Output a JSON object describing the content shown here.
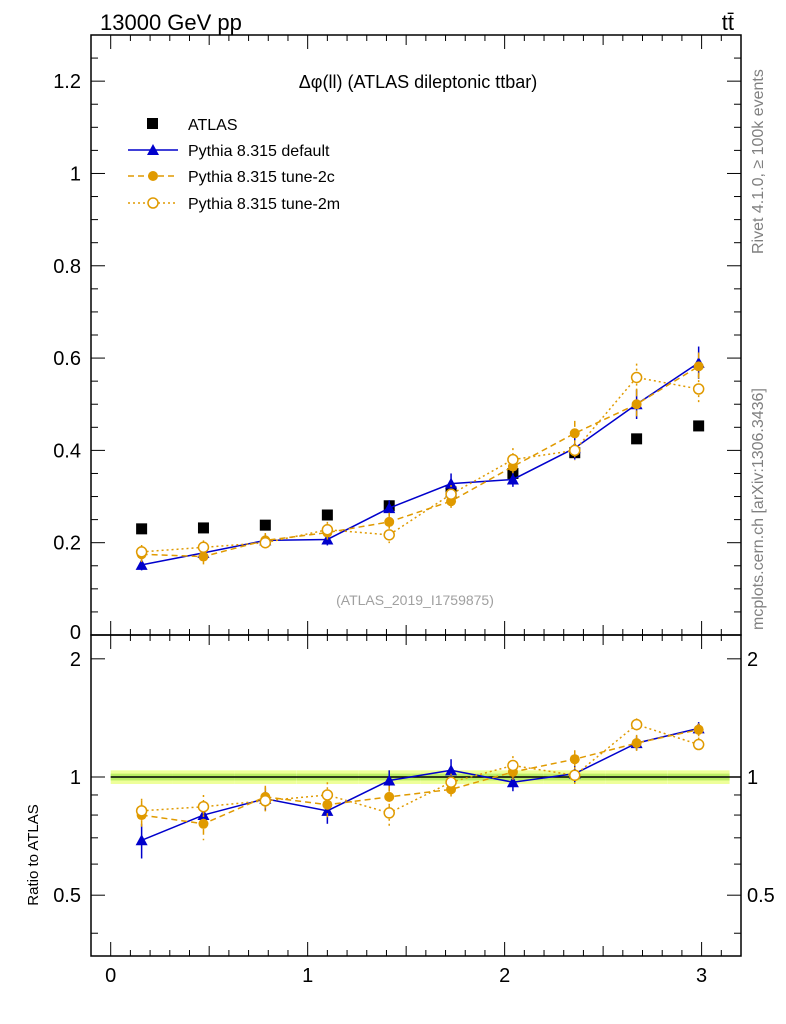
{
  "header": {
    "left": "13000 GeV pp",
    "right": "tt̄"
  },
  "side_text": {
    "rivet": "Rivet 4.1.0, ≥ 100k events",
    "mcplots": "mcplots.cern.ch [arXiv:1306.3436]"
  },
  "chart_data": {
    "type": "scatter",
    "title": "Δφ(ll) (ATLAS dileptonic ttbar)",
    "analysis_label": "(ATLAS_2019_I1759875)",
    "xlabel": "",
    "ylabel_ratio": "Ratio to ATLAS",
    "xlim": [
      -0.1,
      3.2
    ],
    "ylim": [
      0,
      1.3
    ],
    "ratio_ylim": [
      0.35,
      2.3
    ],
    "x_ticks": [
      "0",
      "1",
      "2",
      "3"
    ],
    "y_ticks": [
      "0.2",
      "0.4",
      "0.6",
      "0.8",
      "1",
      "1.2"
    ],
    "y_zero_label": "0",
    "ratio_ticks": [
      "0.5",
      "1",
      "2"
    ],
    "x": [
      0.157,
      0.471,
      0.785,
      1.1,
      1.414,
      1.728,
      2.042,
      2.356,
      2.67,
      2.985
    ],
    "series": [
      {
        "name": "ATLAS",
        "style": "data",
        "color": "#000000",
        "values": [
          0.23,
          0.232,
          0.238,
          0.26,
          0.28,
          0.31,
          0.35,
          0.395,
          0.425,
          0.453
        ],
        "errors": [
          0.005,
          0.005,
          0.005,
          0.005,
          0.006,
          0.006,
          0.007,
          0.008,
          0.008,
          0.008
        ],
        "ratio": [
          1,
          1,
          1,
          1,
          1,
          1,
          1,
          1,
          1,
          1
        ]
      },
      {
        "name": "Pythia 8.315 default",
        "style": "solid-triangle",
        "color": "#0000cc",
        "values": [
          0.152,
          0.178,
          0.205,
          0.207,
          0.275,
          0.328,
          0.337,
          0.405,
          0.5,
          0.59
        ],
        "errors": [
          0.012,
          0.012,
          0.013,
          0.013,
          0.017,
          0.022,
          0.016,
          0.025,
          0.032,
          0.035
        ],
        "ratio": [
          0.69,
          0.8,
          0.88,
          0.82,
          0.98,
          1.04,
          0.97,
          1.02,
          1.22,
          1.33
        ],
        "ratio_errors": [
          0.07,
          0.05,
          0.06,
          0.06,
          0.06,
          0.07,
          0.05,
          0.06,
          0.05,
          0.05
        ]
      },
      {
        "name": "Pythia 8.315 tune-2c",
        "style": "dashed-circle",
        "color": "#e09a00",
        "values": [
          0.175,
          0.17,
          0.205,
          0.222,
          0.245,
          0.29,
          0.365,
          0.437,
          0.5,
          0.582
        ],
        "errors": [
          0.017,
          0.017,
          0.016,
          0.015,
          0.02,
          0.02,
          0.02,
          0.027,
          0.03,
          0.03
        ],
        "ratio": [
          0.8,
          0.76,
          0.89,
          0.85,
          0.89,
          0.93,
          1.03,
          1.11,
          1.22,
          1.32
        ],
        "ratio_errors": [
          0.07,
          0.07,
          0.06,
          0.06,
          0.06,
          0.05,
          0.05,
          0.06,
          0.06,
          0.05
        ]
      },
      {
        "name": "Pythia 8.315 tune-2m",
        "style": "dotted-open-circle",
        "color": "#e09a00",
        "values": [
          0.18,
          0.19,
          0.2,
          0.228,
          0.217,
          0.305,
          0.38,
          0.4,
          0.558,
          0.533
        ],
        "errors": [
          0.015,
          0.015,
          0.015,
          0.017,
          0.018,
          0.02,
          0.025,
          0.022,
          0.03,
          0.03
        ],
        "ratio": [
          0.82,
          0.84,
          0.87,
          0.9,
          0.81,
          0.97,
          1.07,
          1.01,
          1.36,
          1.21
        ],
        "ratio_errors": [
          0.06,
          0.06,
          0.06,
          0.07,
          0.07,
          0.05,
          0.06,
          0.05,
          0.05,
          0.05
        ]
      }
    ]
  }
}
